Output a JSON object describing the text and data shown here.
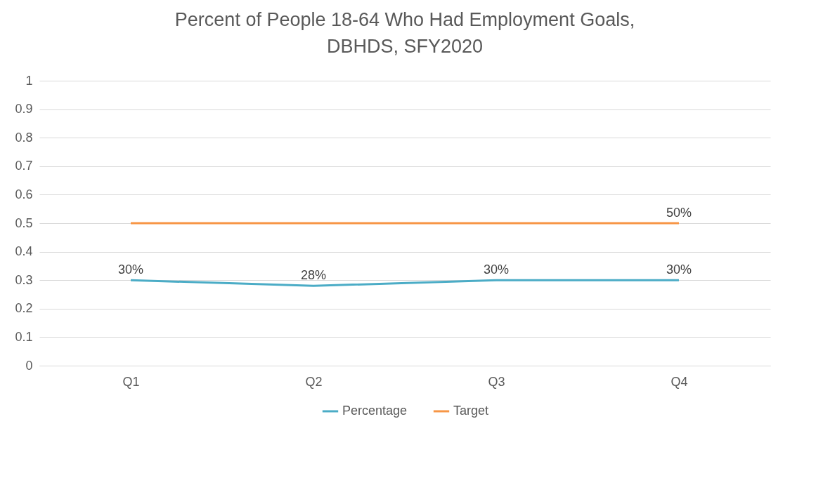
{
  "chart_data": {
    "type": "line",
    "title": "Percent of People 18-64 Who Had Employment Goals,\nDBHDS, SFY2020",
    "categories": [
      "Q1",
      "Q2",
      "Q3",
      "Q4"
    ],
    "series": [
      {
        "name": "Percentage",
        "color": "#4bacc6",
        "values": [
          0.3,
          0.28,
          0.3,
          0.3
        ],
        "value_labels": [
          "30%",
          "28%",
          "30%",
          "30%"
        ]
      },
      {
        "name": "Target",
        "color": "#f79646",
        "values": [
          0.5,
          0.5,
          0.5,
          0.5
        ],
        "value_labels": [
          null,
          null,
          null,
          "50%"
        ]
      }
    ],
    "ylim": [
      0,
      1
    ],
    "yticks": [
      0,
      0.1,
      0.2,
      0.3,
      0.4,
      0.5,
      0.6,
      0.7,
      0.8,
      0.9,
      1
    ],
    "grid": "y",
    "legend": "bottom",
    "marker": "none",
    "line_style": "solid"
  }
}
